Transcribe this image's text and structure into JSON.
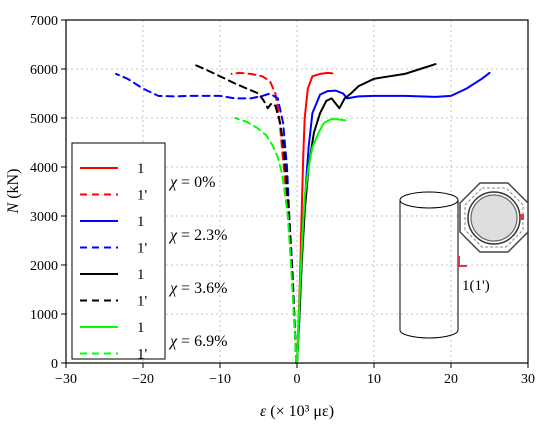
{
  "chart_data": {
    "type": "line",
    "ylabel": "N (kN)",
    "ylabel_italic": "N",
    "ylabel_unit": " (kN)",
    "xlabel": "ε (× 10³ με)",
    "xlabel_italic": "ε",
    "xlabel_unit": " (× 10³ με)",
    "xlim": [
      -30,
      30
    ],
    "ylim": [
      0,
      7000
    ],
    "x_ticks": [
      -30,
      -20,
      -10,
      0,
      10,
      20,
      30
    ],
    "y_ticks": [
      0,
      1000,
      2000,
      3000,
      4000,
      5000,
      6000,
      7000
    ],
    "x_tick_labels": [
      "−30",
      "−20",
      "−10",
      "0",
      "10",
      "20",
      "30"
    ],
    "y_tick_labels": [
      "0",
      "1000",
      "2000",
      "3000",
      "4000",
      "5000",
      "6000",
      "7000"
    ],
    "grid": true,
    "legend_position": "left",
    "groups": [
      {
        "label": "χ = 0%",
        "color": "#ff0000"
      },
      {
        "label": "χ = 2.3%",
        "color": "#0000ff"
      },
      {
        "label": "χ = 3.6%",
        "color": "#000000"
      },
      {
        "label": "χ = 6.9%",
        "color": "#00ff00"
      }
    ],
    "series": [
      {
        "name": "1",
        "group": 0,
        "dashed": false,
        "color": "#ff0000",
        "x": [
          0.0,
          0.2,
          0.4,
          0.6,
          0.8,
          1.0,
          1.4,
          2.0,
          3.0,
          4.0,
          4.6
        ],
        "y": [
          0,
          800,
          1800,
          3000,
          4200,
          5000,
          5600,
          5850,
          5900,
          5920,
          5910
        ]
      },
      {
        "name": "1'",
        "group": 0,
        "dashed": true,
        "color": "#ff0000",
        "x": [
          -0.1,
          -0.3,
          -0.6,
          -1.0,
          -1.4,
          -1.9,
          -2.3,
          -2.8,
          -3.5,
          -4.5,
          -6.0,
          -7.5,
          -8.5
        ],
        "y": [
          0,
          700,
          1600,
          2600,
          3500,
          4300,
          5000,
          5500,
          5750,
          5850,
          5900,
          5920,
          5900
        ]
      },
      {
        "name": "1",
        "group": 1,
        "dashed": false,
        "color": "#0000ff",
        "x": [
          0.0,
          0.3,
          0.6,
          1.0,
          1.5,
          2.0,
          3.0,
          4.0,
          5.0,
          6.0,
          6.5,
          8.0,
          10.0,
          14.0,
          18.0,
          20.0,
          22.0,
          24.0,
          25.0
        ],
        "y": [
          0,
          900,
          2100,
          3300,
          4400,
          5100,
          5480,
          5550,
          5560,
          5500,
          5400,
          5440,
          5450,
          5450,
          5430,
          5450,
          5600,
          5800,
          5920
        ]
      },
      {
        "name": "1'",
        "group": 1,
        "dashed": true,
        "color": "#0000ff",
        "x": [
          -0.1,
          -0.3,
          -0.6,
          -1.0,
          -1.3,
          -1.8,
          -2.5,
          -3.5,
          -4.5,
          -6.0,
          -8.0,
          -10.0,
          -12.0,
          -14.0,
          -16.0,
          -18.0,
          -20.0,
          -22.0,
          -23.5
        ],
        "y": [
          0,
          800,
          1900,
          3000,
          4000,
          4900,
          5400,
          5500,
          5450,
          5400,
          5400,
          5450,
          5450,
          5450,
          5440,
          5450,
          5600,
          5800,
          5900
        ]
      },
      {
        "name": "1",
        "group": 2,
        "dashed": false,
        "color": "#000000",
        "x": [
          0.0,
          0.3,
          0.6,
          1.0,
          1.5,
          2.2,
          3.0,
          3.8,
          4.5,
          5.5,
          6.2,
          7.0,
          8.0,
          10.0,
          12.0,
          14.0,
          16.0,
          18.0
        ],
        "y": [
          0,
          900,
          2000,
          3100,
          4000,
          4700,
          5100,
          5350,
          5400,
          5200,
          5400,
          5500,
          5650,
          5800,
          5850,
          5900,
          6000,
          6100
        ]
      },
      {
        "name": "1'",
        "group": 2,
        "dashed": true,
        "color": "#000000",
        "x": [
          -0.1,
          -0.3,
          -0.6,
          -1.0,
          -1.4,
          -1.8,
          -2.2,
          -2.8,
          -3.3,
          -3.8,
          -4.3,
          -5.0,
          -6.5,
          -8.0,
          -10.0,
          -12.0,
          -13.5
        ],
        "y": [
          0,
          800,
          1800,
          2900,
          3800,
          4500,
          4900,
          5250,
          5300,
          5200,
          5350,
          5500,
          5600,
          5700,
          5850,
          6000,
          6100
        ]
      },
      {
        "name": "1",
        "group": 3,
        "dashed": false,
        "color": "#00ff00",
        "x": [
          0.0,
          0.2,
          0.4,
          0.7,
          1.0,
          1.5,
          2.0,
          2.8,
          3.5,
          4.5,
          5.5,
          6.3
        ],
        "y": [
          0,
          700,
          1600,
          2600,
          3400,
          4000,
          4400,
          4700,
          4900,
          4980,
          4970,
          4950
        ]
      },
      {
        "name": "1'",
        "group": 3,
        "dashed": true,
        "color": "#00ff00",
        "x": [
          -0.1,
          -0.3,
          -0.6,
          -0.9,
          -1.2,
          -1.6,
          -2.0,
          -2.5,
          -3.2,
          -4.0,
          -5.2,
          -6.5,
          -8.0
        ],
        "y": [
          0,
          700,
          1500,
          2300,
          3000,
          3500,
          3900,
          4200,
          4450,
          4650,
          4800,
          4920,
          5000
        ]
      }
    ]
  },
  "inset": {
    "label": "1(1')",
    "marker_color": "#d04040"
  }
}
